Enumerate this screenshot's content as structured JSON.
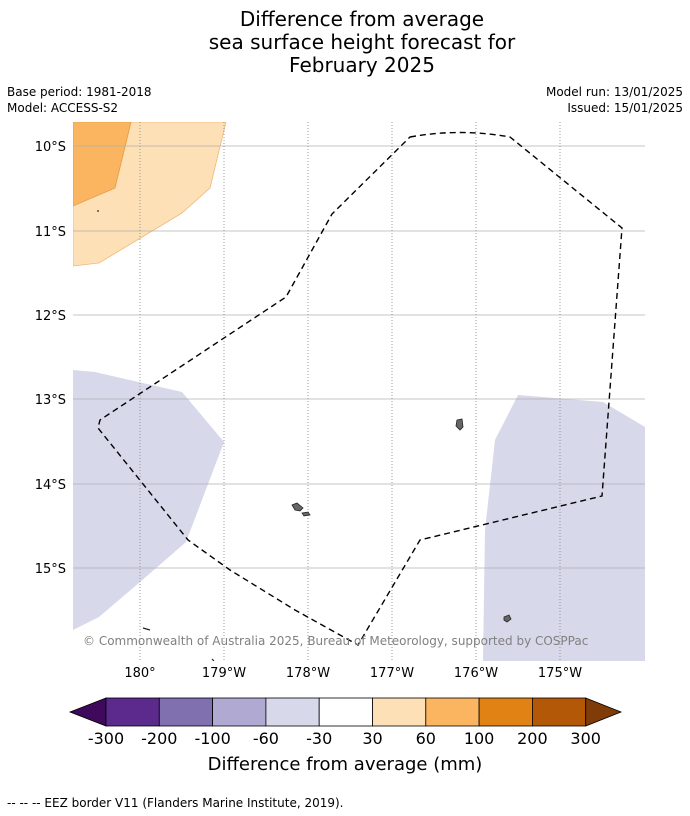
{
  "title_lines": [
    "Difference from average",
    "sea surface height forecast for",
    "February 2025"
  ],
  "meta_left": [
    "Base period: 1981-2018",
    "Model: ACCESS-S2"
  ],
  "meta_right": [
    "Model run: 13/01/2025",
    "Issued: 15/01/2025"
  ],
  "map": {
    "lat_ticks": [
      "10°S",
      "11°S",
      "12°S",
      "13°S",
      "14°S",
      "15°S"
    ],
    "lon_ticks": [
      "180°",
      "179°W",
      "178°W",
      "177°W",
      "176°W",
      "175°W"
    ],
    "credit": "© Commonwealth of Australia 2025, Bureau of Meteorology, supported by COSPPac"
  },
  "colorbar": {
    "labels": [
      "-300",
      "-200",
      "-100",
      "-60",
      "-30",
      "30",
      "60",
      "100",
      "200",
      "300"
    ],
    "colors": [
      "#3f0a5b",
      "#5b2a8c",
      "#8070b0",
      "#b0aad2",
      "#d7d8ea",
      "#ffffff",
      "#fde0b5",
      "#fbb560",
      "#e08214",
      "#b35806",
      "#7f3b08"
    ],
    "title": "Difference from average (mm)"
  },
  "footer": "-- -- -- EEZ border V11 (Flanders Marine Institute, 2019)."
}
